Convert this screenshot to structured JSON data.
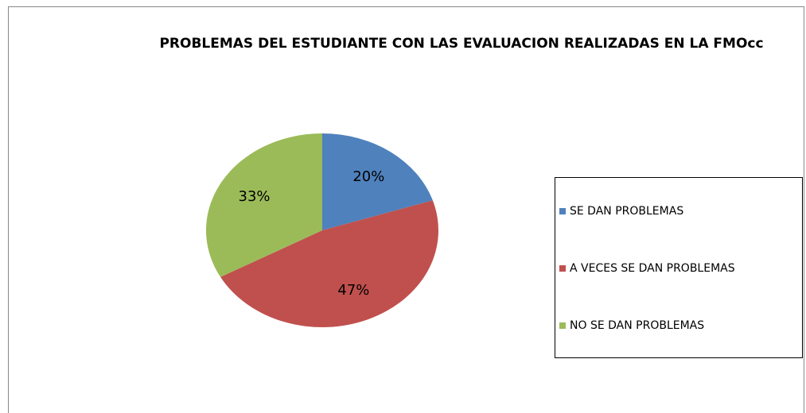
{
  "chart_data": {
    "type": "pie",
    "title": "PROBLEMAS DEL ESTUDIANTE CON LAS EVALUACION REALIZADAS EN LA FMOcc",
    "categories": [
      "SE DAN PROBLEMAS",
      "A VECES SE DAN PROBLEMAS",
      "NO SE DAN PROBLEMAS"
    ],
    "values": [
      20,
      47,
      33
    ],
    "value_labels": [
      "20%",
      "47%",
      "33%"
    ],
    "colors": [
      "#4f81bd",
      "#c0504d",
      "#9bbb59"
    ],
    "legend": "right"
  }
}
